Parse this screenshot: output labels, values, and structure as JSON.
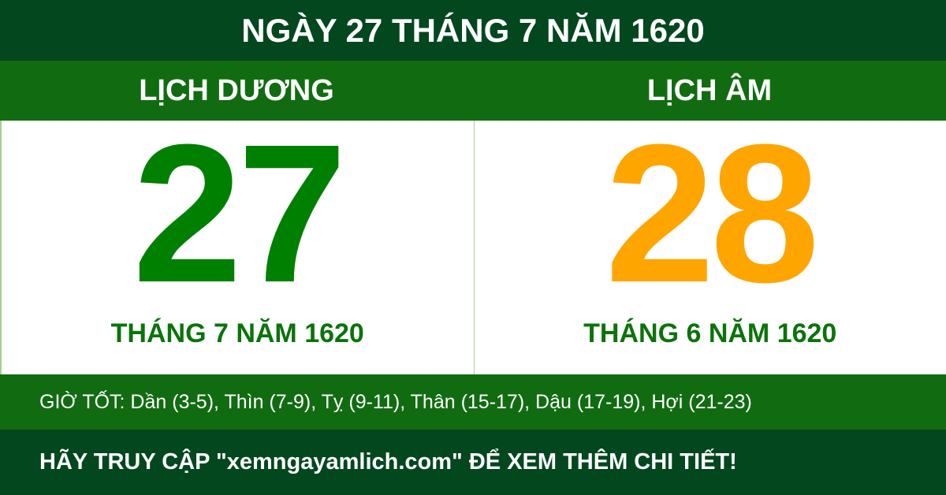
{
  "title": "NGÀY 27 THÁNG 7 NĂM 1620",
  "solar": {
    "header": "LỊCH DƯƠNG",
    "day": "27",
    "month_year": "THÁNG 7 NĂM 1620",
    "color": "#008000"
  },
  "lunar": {
    "header": "LỊCH ÂM",
    "day": "28",
    "month_year": "THÁNG 6 NĂM 1620",
    "color": "#ffa500"
  },
  "good_hours": "GIỜ TỐT: Dần (3-5), Thìn (7-9), Tỵ (9-11), Thân (15-17), Dậu (17-19), Hợi (21-23)",
  "footer": "HÃY TRUY CẬP \"xemngayamlich.com\" ĐỂ XEM THÊM CHI TIẾT!",
  "colors": {
    "dark_green": "#03471f",
    "green": "#116c11",
    "month_text": "#0b730b"
  }
}
